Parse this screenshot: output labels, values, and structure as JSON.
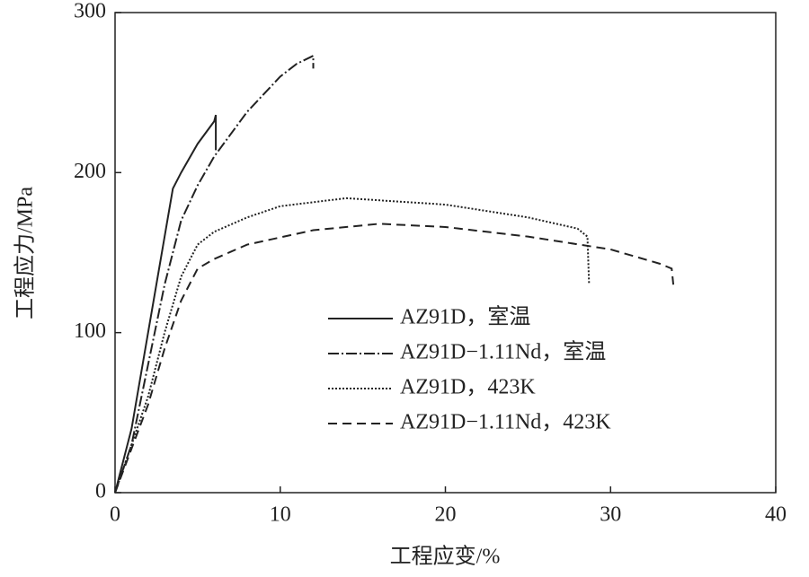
{
  "chart_data": {
    "type": "line",
    "xlabel": "工程应变/%",
    "ylabel": "工程应力/MPa",
    "xlim": [
      0,
      40
    ],
    "xticks": [
      0,
      10,
      20,
      30,
      40
    ],
    "ylim": [
      0,
      300
    ],
    "yticks": [
      0,
      100,
      200,
      300
    ],
    "grid": false,
    "legend": "center-right",
    "series": [
      {
        "name": "AZ91D，室温",
        "color": "#222222",
        "dash": "none",
        "x": [
          0,
          1,
          2,
          3,
          3.5,
          4,
          5,
          6,
          6.1,
          6.1
        ],
        "values": [
          0,
          40,
          100,
          160,
          190,
          200,
          218,
          232,
          236,
          214
        ]
      },
      {
        "name": "AZ91D−1.11Nd，室温",
        "color": "#222222",
        "dash": "12,3,2,3",
        "x": [
          0,
          1,
          2,
          3,
          4,
          5,
          6,
          8,
          10,
          11,
          12,
          12
        ],
        "values": [
          0,
          30,
          80,
          130,
          170,
          192,
          210,
          238,
          260,
          268,
          273,
          265
        ]
      },
      {
        "name": "AZ91D，423K",
        "color": "#222222",
        "dash": "2,2",
        "x": [
          0,
          2,
          3,
          4,
          5,
          6,
          8,
          10,
          14,
          20,
          25,
          28,
          28.6,
          28.7
        ],
        "values": [
          0,
          60,
          100,
          135,
          155,
          163,
          172,
          179,
          184,
          180,
          172,
          165,
          160,
          130
        ]
      },
      {
        "name": "AZ91D−1.11Nd，423K",
        "color": "#222222",
        "dash": "10,6",
        "x": [
          0,
          2,
          3,
          4,
          5,
          6,
          8,
          12,
          16,
          20,
          25,
          30,
          33,
          33.7,
          33.8
        ],
        "values": [
          0,
          55,
          90,
          120,
          140,
          146,
          155,
          164,
          168,
          166,
          160,
          152,
          143,
          140,
          130
        ]
      }
    ]
  }
}
